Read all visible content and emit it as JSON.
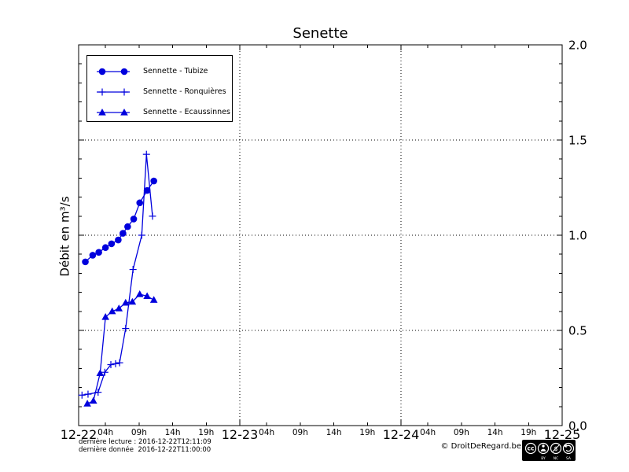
{
  "chart_data": {
    "type": "line",
    "title": "Senette",
    "xlabel": "",
    "ylabel": "Débit en m³/s",
    "x_unit": "hours since 2016-12-22 00:00",
    "xlim": [
      0,
      72
    ],
    "ylim": [
      0.0,
      2.0
    ],
    "grid": "dotted, at major ticks",
    "legend_position": "upper left",
    "x_day_ticks": [
      {
        "hour": 0,
        "label": "12-22"
      },
      {
        "hour": 24,
        "label": "12-23"
      },
      {
        "hour": 48,
        "label": "12-24"
      },
      {
        "hour": 72,
        "label": "12-25"
      }
    ],
    "x_hour_tick_offsets": [
      4,
      9,
      14,
      19
    ],
    "x_hour_tick_labels": [
      "04h",
      "09h",
      "14h",
      "19h"
    ],
    "y_tick_values": [
      0.0,
      0.5,
      1.0,
      1.5,
      2.0
    ],
    "y_tick_labels": [
      "0.0",
      "0.5",
      "1.0",
      "1.5",
      "2.0"
    ],
    "y_minor_step": 0.1,
    "series": [
      {
        "name": "Sennette - Tubize",
        "slug": "tubize",
        "marker": "circle",
        "color": "#0000dd",
        "x": [
          1.0,
          2.1,
          3.0,
          4.0,
          4.9,
          5.9,
          6.6,
          7.3,
          8.2,
          9.1,
          10.2,
          11.2
        ],
        "y": [
          0.86,
          0.895,
          0.91,
          0.935,
          0.955,
          0.975,
          1.01,
          1.045,
          1.085,
          1.17,
          1.235,
          1.285
        ]
      },
      {
        "name": "Sennette - Ronquières",
        "slug": "ronquieres",
        "marker": "plus",
        "color": "#0000dd",
        "x": [
          0.5,
          1.4,
          2.9,
          3.9,
          4.8,
          5.5,
          6.1,
          7.0,
          8.1,
          9.4,
          10.1,
          11.0
        ],
        "y": [
          0.16,
          0.165,
          0.175,
          0.28,
          0.32,
          0.325,
          0.33,
          0.51,
          0.82,
          1.0,
          1.425,
          1.1
        ]
      },
      {
        "name": "Sennette - Ecaussinnes",
        "slug": "ecaussinnes",
        "marker": "triangle",
        "color": "#0000dd",
        "x": [
          1.3,
          2.2,
          3.2,
          4.0,
          5.0,
          6.0,
          7.0,
          8.0,
          9.1,
          10.2,
          11.2
        ],
        "y": [
          0.115,
          0.13,
          0.275,
          0.57,
          0.6,
          0.615,
          0.645,
          0.65,
          0.69,
          0.68,
          0.66
        ]
      }
    ]
  },
  "footer": {
    "notes": [
      "dernière lecture : 2016-12-22T12:11:09",
      "dernière donnée  2016-12-22T11:00:00"
    ],
    "copyright": "© DroitDeRegard.be",
    "license": {
      "cc": "cc",
      "dollar": "$",
      "labels": [
        "BY",
        "NC",
        "SA"
      ]
    }
  }
}
